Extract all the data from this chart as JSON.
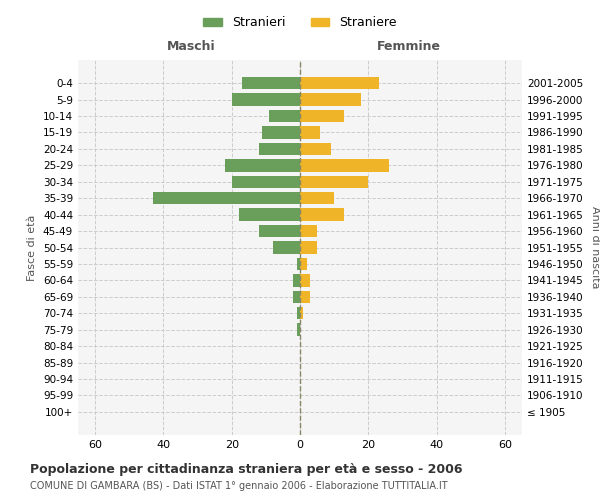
{
  "age_groups": [
    "100+",
    "95-99",
    "90-94",
    "85-89",
    "80-84",
    "75-79",
    "70-74",
    "65-69",
    "60-64",
    "55-59",
    "50-54",
    "45-49",
    "40-44",
    "35-39",
    "30-34",
    "25-29",
    "20-24",
    "15-19",
    "10-14",
    "5-9",
    "0-4"
  ],
  "birth_years": [
    "≤ 1905",
    "1906-1910",
    "1911-1915",
    "1916-1920",
    "1921-1925",
    "1926-1930",
    "1931-1935",
    "1936-1940",
    "1941-1945",
    "1946-1950",
    "1951-1955",
    "1956-1960",
    "1961-1965",
    "1966-1970",
    "1971-1975",
    "1976-1980",
    "1981-1985",
    "1986-1990",
    "1991-1995",
    "1996-2000",
    "2001-2005"
  ],
  "males": [
    0,
    0,
    0,
    0,
    0,
    1,
    1,
    2,
    2,
    1,
    8,
    12,
    18,
    43,
    20,
    22,
    12,
    11,
    9,
    20,
    17
  ],
  "females": [
    0,
    0,
    0,
    0,
    0,
    0,
    1,
    3,
    3,
    2,
    5,
    5,
    13,
    10,
    20,
    26,
    9,
    6,
    13,
    18,
    23
  ],
  "male_color": "#6a9e5b",
  "female_color": "#f0b429",
  "background_color": "#f5f5f5",
  "grid_color": "#cccccc",
  "title": "Popolazione per cittadinanza straniera per età e sesso - 2006",
  "subtitle": "COMUNE DI GAMBARA (BS) - Dati ISTAT 1° gennaio 2006 - Elaborazione TUTTITALIA.IT",
  "xlabel_left": "Maschi",
  "xlabel_right": "Femmine",
  "ylabel_left": "Fasce di età",
  "ylabel_right": "Anni di nascita",
  "xlim": 65,
  "legend_stranieri": "Stranieri",
  "legend_straniere": "Straniere"
}
